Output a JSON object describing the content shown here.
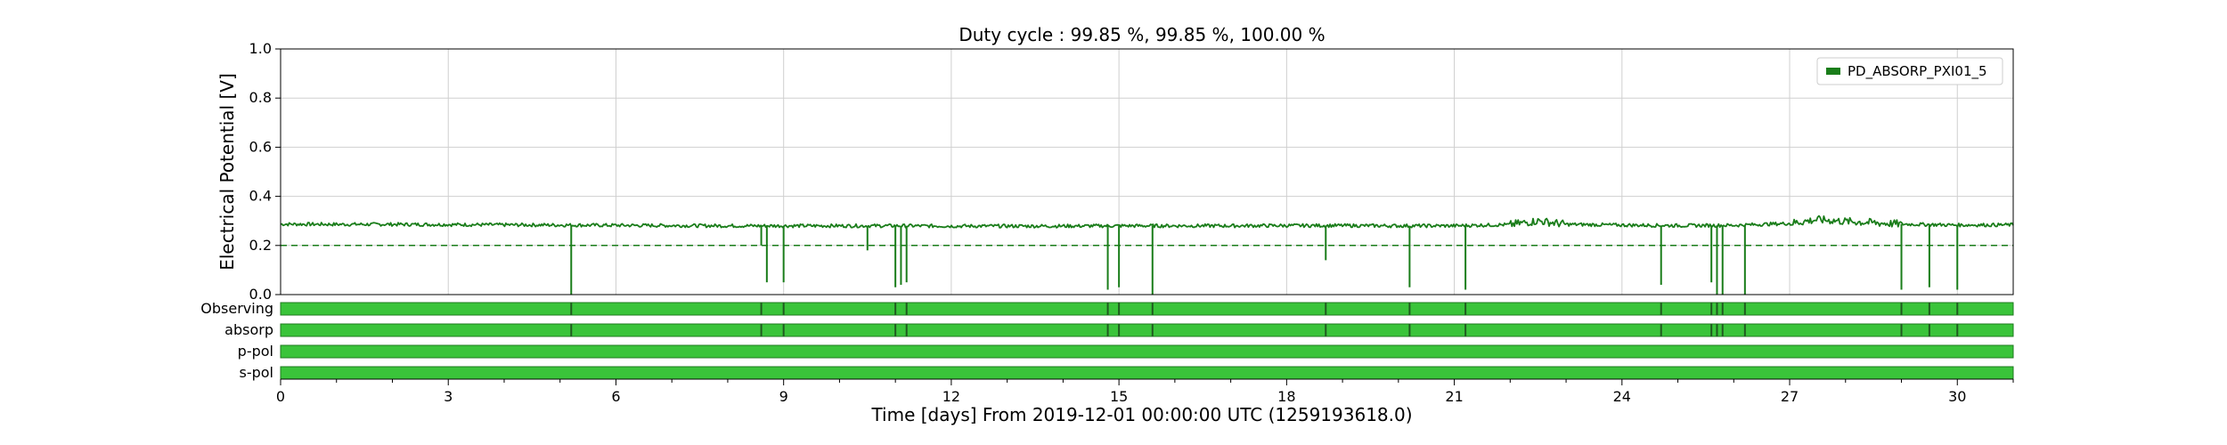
{
  "chart_data": {
    "type": "line",
    "title": "Duty cycle : 99.85 %, 99.85 %, 100.00 %",
    "xlabel": "Time [days] From 2019-12-01 00:00:00 UTC (1259193618.0)",
    "ylabel": "Electrical Potential [V]",
    "xlim": [
      0,
      31
    ],
    "ylim": [
      0,
      1.0
    ],
    "x_ticks": [
      "0",
      "3",
      "6",
      "9",
      "12",
      "15",
      "18",
      "21",
      "24",
      "27",
      "30"
    ],
    "x_tick_values": [
      0,
      3,
      6,
      9,
      12,
      15,
      18,
      21,
      24,
      27,
      30
    ],
    "y_ticks": [
      "0.0",
      "0.2",
      "0.4",
      "0.6",
      "0.8",
      "1.0"
    ],
    "y_tick_values": [
      0,
      0.2,
      0.4,
      0.6,
      0.8,
      1.0
    ],
    "grid": true,
    "legend_position": "top-right",
    "threshold": 0.2,
    "series": [
      {
        "name": "PD_ABSORP_PXI01_5",
        "color": "#1a7d1a",
        "x": [
          0,
          1,
          2,
          3,
          4,
          5,
          6,
          7,
          8,
          9,
          10,
          11,
          12,
          13,
          14,
          15,
          16,
          17,
          18,
          19,
          20,
          21,
          22,
          22.5,
          23,
          24,
          25,
          26,
          27,
          27.5,
          28,
          29,
          30,
          31
        ],
        "values": [
          0.287,
          0.286,
          0.286,
          0.285,
          0.284,
          0.283,
          0.282,
          0.281,
          0.28,
          0.28,
          0.28,
          0.28,
          0.279,
          0.279,
          0.279,
          0.28,
          0.28,
          0.28,
          0.281,
          0.281,
          0.28,
          0.28,
          0.285,
          0.3,
          0.286,
          0.283,
          0.281,
          0.282,
          0.29,
          0.305,
          0.298,
          0.287,
          0.283,
          0.284
        ]
      }
    ],
    "dips": [
      {
        "x": 5.2,
        "value": 0.0
      },
      {
        "x": 8.6,
        "value": 0.2
      },
      {
        "x": 8.7,
        "value": 0.05
      },
      {
        "x": 9.0,
        "value": 0.05
      },
      {
        "x": 10.5,
        "value": 0.18
      },
      {
        "x": 11.0,
        "value": 0.03
      },
      {
        "x": 11.1,
        "value": 0.04
      },
      {
        "x": 11.2,
        "value": 0.05
      },
      {
        "x": 14.8,
        "value": 0.02
      },
      {
        "x": 15.0,
        "value": 0.03
      },
      {
        "x": 15.6,
        "value": 0.0
      },
      {
        "x": 18.7,
        "value": 0.14
      },
      {
        "x": 20.2,
        "value": 0.03
      },
      {
        "x": 21.2,
        "value": 0.02
      },
      {
        "x": 24.7,
        "value": 0.04
      },
      {
        "x": 25.6,
        "value": 0.05
      },
      {
        "x": 25.7,
        "value": 0.0
      },
      {
        "x": 25.8,
        "value": 0.0
      },
      {
        "x": 26.2,
        "value": 0.0
      },
      {
        "x": 29.0,
        "value": 0.02
      },
      {
        "x": 29.5,
        "value": 0.03
      },
      {
        "x": 30.0,
        "value": 0.02
      }
    ],
    "segment_rows": [
      {
        "label": "Observing",
        "color": "#3ac43a",
        "gaps": [
          5.2,
          8.6,
          9.0,
          11.0,
          11.2,
          14.8,
          15.0,
          15.6,
          18.7,
          20.2,
          21.2,
          24.7,
          25.6,
          25.7,
          25.8,
          26.2,
          29.0,
          29.5,
          30.0
        ]
      },
      {
        "label": "absorp",
        "color": "#3ac43a",
        "gaps": [
          5.2,
          8.6,
          9.0,
          11.0,
          11.2,
          14.8,
          15.0,
          15.6,
          18.7,
          20.2,
          21.2,
          24.7,
          25.6,
          25.7,
          25.8,
          26.2,
          29.0,
          29.5,
          30.0
        ]
      },
      {
        "label": "p-pol",
        "color": "#3ac43a",
        "gaps": []
      },
      {
        "label": "s-pol",
        "color": "#3ac43a",
        "gaps": []
      }
    ]
  }
}
